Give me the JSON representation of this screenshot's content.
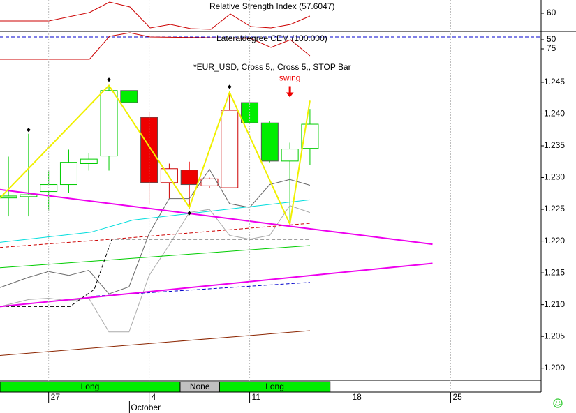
{
  "chart_data": [
    {
      "type": "line",
      "title": "Relative Strength Index (57.6047)",
      "xlim": [
        -0.42,
        26.5
      ],
      "ylim": [
        44.4,
        71.4
      ],
      "yticks": [
        60
      ],
      "series": [
        {
          "color": "#cc0000",
          "x": [
            -0.42,
            2.01,
            4.03,
            5.03,
            6.04,
            7.05,
            8.06,
            9.06,
            10.07,
            11.04,
            12.05,
            13.06,
            14.03,
            15.0
          ],
          "values": [
            53.4,
            53.4,
            60.6,
            69.6,
            65.4,
            47.4,
            50.4,
            46.8,
            46.2,
            59.4,
            48.6,
            47.4,
            50.4,
            57.6
          ]
        }
      ]
    },
    {
      "type": "line",
      "title": "Lateraldegree CEM (100.000)",
      "xlim": [
        -0.42,
        26.5
      ],
      "ylim": [
        126.9,
        26.9
      ],
      "yticks": [
        50,
        75
      ],
      "series": [
        {
          "color": "#0000cc",
          "dash": true,
          "x": [
            -0.42,
            26.5
          ],
          "values": [
            42.3,
            42.3
          ]
        },
        {
          "color": "#cc0000",
          "x": [
            -0.42,
            4.03,
            5.03,
            6.04,
            7.05,
            12.05,
            13.06,
            14.03,
            15.0
          ],
          "values": [
            103.8,
            103.8,
            40.4,
            30.8,
            42.3,
            46.2,
            71.2,
            50.0,
            94.2
          ]
        }
      ]
    },
    {
      "type": "candlestick",
      "title": "*EUR_USD, Cross 5,, Cross 5,, STOP Bar",
      "xlim": [
        -0.42,
        26.5
      ],
      "ylim": [
        1.1981,
        1.2473
      ],
      "grid": true,
      "yticks": [
        {
          "value": 1.245,
          "label": "1.245"
        },
        {
          "value": 1.24,
          "label": "1.240"
        },
        {
          "value": 1.235,
          "label": "1.235"
        },
        {
          "value": 1.23,
          "label": "1.230"
        },
        {
          "value": 1.225,
          "label": "1.225"
        },
        {
          "value": 1.22,
          "label": "1.220"
        },
        {
          "value": 1.215,
          "label": "1.215"
        },
        {
          "value": 1.21,
          "label": "1.210"
        },
        {
          "value": 1.205,
          "label": "1.205"
        },
        {
          "value": 1.2,
          "label": "1.200"
        }
      ],
      "xticks": [
        {
          "value": 2,
          "label": "27"
        },
        {
          "value": 7,
          "label": "4"
        },
        {
          "value": 12,
          "label": "11"
        },
        {
          "value": 17,
          "label": "18"
        },
        {
          "value": 22,
          "label": "25"
        }
      ],
      "month_ticks": [
        {
          "value": 6.02,
          "label": "October"
        }
      ],
      "x": [
        0,
        1,
        2,
        3,
        4,
        5,
        6,
        7,
        8,
        9,
        10,
        11,
        12,
        13,
        14,
        15
      ],
      "open": [
        1.2268,
        1.227,
        1.2278,
        1.2289,
        1.2322,
        1.2334,
        1.2437,
        1.2395,
        1.2292,
        1.2312,
        1.2287,
        1.2284,
        1.2418,
        1.2386,
        1.2326,
        1.2346
      ],
      "high": [
        1.2333,
        1.2369,
        1.2311,
        1.2344,
        1.2339,
        1.2446,
        1.2437,
        1.2404,
        1.2322,
        1.2325,
        1.23,
        1.2435,
        1.2418,
        1.2389,
        1.2355,
        1.2408
      ],
      "low": [
        1.2239,
        1.2239,
        1.2248,
        1.2276,
        1.2311,
        1.2311,
        1.2418,
        1.2259,
        1.2267,
        1.225,
        1.2284,
        1.2284,
        1.2386,
        1.2324,
        1.2224,
        1.232
      ],
      "close": [
        1.2271,
        1.2273,
        1.2289,
        1.2324,
        1.2329,
        1.2437,
        1.2418,
        1.2292,
        1.2314,
        1.2289,
        1.2298,
        1.2406,
        1.2386,
        1.2326,
        1.2345,
        1.2384
      ],
      "colors": [
        "#00cc00",
        "#00cc00",
        "#00cc00",
        "#00cc00",
        "#00cc00",
        "#00cc00",
        "#00ee00",
        "#ee0000",
        "#cc0000",
        "#ee0000",
        "#cc0000",
        "#cc0000",
        "#00ee00",
        "#00ee00",
        "#00cc00",
        "#00cc00"
      ],
      "pivots": {
        "x": [
          1,
          5,
          9,
          11
        ],
        "values": [
          1.2375,
          1.2454,
          1.2244,
          1.2443
        ]
      },
      "annotations": [
        {
          "text": "swing",
          "x": 14,
          "value": 1.2456,
          "color": "#ee0000"
        }
      ],
      "series": [
        {
          "color": "#666666",
          "x": [
            -0.42,
            1,
            2,
            3,
            4,
            5,
            6,
            7,
            8,
            9,
            10,
            11,
            12,
            13,
            14,
            15
          ],
          "values": [
            1.2127,
            1.2143,
            1.2152,
            1.2146,
            1.2154,
            1.2117,
            1.2128,
            1.2212,
            1.2267,
            1.2267,
            1.2313,
            1.2259,
            1.2253,
            1.2289,
            1.2297,
            1.2288
          ]
        },
        {
          "color": "#aaaaaa",
          "x": [
            -0.42,
            1,
            2,
            3,
            4,
            5,
            6,
            7,
            8,
            9,
            10,
            11,
            12,
            13,
            14,
            15
          ],
          "values": [
            1.2097,
            1.2108,
            1.211,
            1.2106,
            1.211,
            1.2057,
            1.2057,
            1.2146,
            1.2194,
            1.2245,
            1.225,
            1.2209,
            1.2203,
            1.2209,
            1.2256,
            1.2245
          ]
        },
        {
          "color": "#8b2500",
          "x": [
            -0.42,
            15
          ],
          "values": [
            1.202,
            1.2059
          ]
        },
        {
          "color": "#00cc00",
          "x": [
            -0.42,
            15
          ],
          "values": [
            1.2158,
            1.2193
          ]
        },
        {
          "color": "#0000cc",
          "dash": true,
          "x": [
            4.1,
            15
          ],
          "values": [
            1.2113,
            1.2135
          ]
        },
        {
          "color": "#000000",
          "dash": true,
          "x": [
            -0.42,
            3.06,
            4.27,
            5.14,
            15
          ],
          "values": [
            1.2097,
            1.2097,
            1.2124,
            1.2203,
            1.2203
          ]
        },
        {
          "color": "#cc0000",
          "dash": true,
          "x": [
            -0.42,
            5.14,
            15
          ],
          "values": [
            1.219,
            1.2203,
            1.2228
          ]
        },
        {
          "color": "#00dddd",
          "x": [
            -0.42,
            4.1,
            6.18,
            15
          ],
          "values": [
            1.2198,
            1.2214,
            1.2233,
            1.2265
          ]
        },
        {
          "color": "#ee00ee",
          "width": 2,
          "x": [
            -0.42,
            21.1
          ],
          "values": [
            1.2281,
            1.2195
          ]
        },
        {
          "color": "#ee00ee",
          "width": 2,
          "x": [
            -0.42,
            21.1
          ],
          "values": [
            1.2097,
            1.2165
          ]
        },
        {
          "color": "#f0f000",
          "width": 2,
          "x": [
            -0.42,
            5,
            9,
            11,
            14,
            15
          ],
          "values": [
            1.2268,
            1.2445,
            1.2253,
            1.2434,
            1.2227,
            1.2421
          ]
        }
      ],
      "regimes": [
        {
          "label": "Long",
          "start": -0.42,
          "end": 8.54,
          "color": "#00ee00"
        },
        {
          "label": "None",
          "start": 8.54,
          "end": 10.5,
          "color": "#c0c0c0"
        },
        {
          "label": "Long",
          "start": 10.5,
          "end": 16.0,
          "color": "#00ee00"
        }
      ]
    }
  ]
}
